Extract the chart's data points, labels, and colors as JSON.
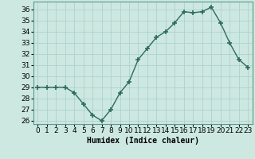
{
  "x": [
    0,
    1,
    2,
    3,
    4,
    5,
    6,
    7,
    8,
    9,
    10,
    11,
    12,
    13,
    14,
    15,
    16,
    17,
    18,
    19,
    20,
    21,
    22,
    23
  ],
  "y": [
    29,
    29,
    29,
    29,
    28.5,
    27.5,
    26.5,
    26,
    27,
    28.5,
    29.5,
    31.5,
    32.5,
    33.5,
    34,
    34.8,
    35.8,
    35.7,
    35.8,
    36.2,
    34.8,
    33,
    31.5,
    30.8
  ],
  "line_color": "#2e6b5e",
  "marker_color": "#2e6b5e",
  "bg_color": "#cce8e0",
  "grid_color": "#a8cfc8",
  "xlabel": "Humidex (Indice chaleur)",
  "xlim": [
    -0.5,
    23.5
  ],
  "ylim": [
    25.7,
    36.7
  ],
  "yticks": [
    26,
    27,
    28,
    29,
    30,
    31,
    32,
    33,
    34,
    35,
    36
  ],
  "xtick_labels": [
    "0",
    "1",
    "2",
    "3",
    "4",
    "5",
    "6",
    "7",
    "8",
    "9",
    "10",
    "11",
    "12",
    "13",
    "14",
    "15",
    "16",
    "17",
    "18",
    "19",
    "20",
    "21",
    "22",
    "23"
  ],
  "xlabel_fontsize": 7,
  "tick_fontsize": 6.5,
  "linewidth": 1.0,
  "markersize": 4
}
